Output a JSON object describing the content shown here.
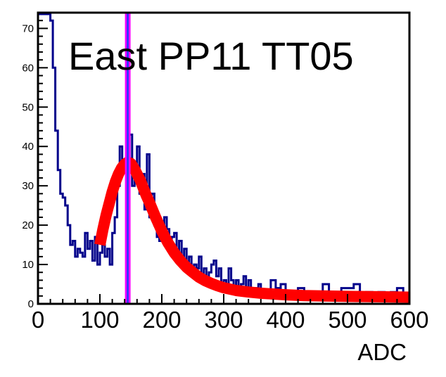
{
  "chart_data": {
    "type": "line",
    "title": "East PP11 TT05",
    "xlabel": "ADC",
    "ylabel": "",
    "xlim": [
      0,
      600
    ],
    "ylim": [
      0,
      74
    ],
    "x_ticks": [
      0,
      100,
      200,
      300,
      400,
      500,
      600
    ],
    "y_ticks": [
      0,
      10,
      20,
      30,
      40,
      50,
      60,
      70
    ],
    "grid": false,
    "colors": {
      "histogram": "#00008b",
      "fit": "#ff0000",
      "marker_outer": "#ff00ff",
      "marker_inner": "#3333ff",
      "frame": "#000000"
    },
    "series": [
      {
        "kind": "histogram",
        "bin_width": 2,
        "x": [
          0,
          4,
          8,
          12,
          16,
          20,
          24,
          28,
          32,
          36,
          40,
          44,
          48,
          52,
          56,
          60,
          64,
          68,
          72,
          76,
          80,
          84,
          88,
          92,
          96,
          100,
          104,
          108,
          112,
          116,
          120,
          124,
          128,
          132,
          136,
          140,
          144,
          148,
          152,
          156,
          160,
          164,
          168,
          172,
          176,
          180,
          184,
          188,
          192,
          196,
          200,
          204,
          208,
          212,
          216,
          220,
          224,
          228,
          232,
          236,
          240,
          244,
          248,
          252,
          256,
          260,
          264,
          268,
          272,
          276,
          280,
          284,
          288,
          292,
          296,
          300,
          304,
          308,
          312,
          316,
          320,
          324,
          328,
          332,
          336,
          340,
          344,
          348,
          352,
          356,
          360,
          368,
          376,
          384,
          392,
          400,
          410,
          420,
          430,
          440,
          450,
          460,
          470,
          480,
          490,
          500,
          510,
          520,
          530,
          540,
          550,
          560,
          570,
          580,
          590,
          600
        ],
        "values": [
          74,
          74,
          74,
          74,
          74,
          72,
          60,
          44,
          34,
          28,
          27,
          25,
          20,
          15,
          16,
          12,
          14,
          13,
          12,
          18,
          14,
          16,
          11,
          17,
          10,
          13,
          15,
          12,
          14,
          10,
          18,
          22,
          30,
          40,
          34,
          36,
          37,
          43,
          30,
          34,
          40,
          28,
          33,
          24,
          38,
          22,
          28,
          20,
          17,
          16,
          18,
          22,
          19,
          14,
          17,
          18,
          13,
          16,
          11,
          14,
          10,
          12,
          9,
          10,
          9,
          12,
          7,
          9,
          6,
          8,
          10,
          11,
          7,
          9,
          4,
          6,
          5,
          9,
          6,
          4,
          6,
          3,
          5,
          7,
          4,
          6,
          3,
          2,
          4,
          5,
          3,
          3,
          6,
          4,
          5,
          2,
          2,
          4,
          3,
          3,
          3,
          5,
          2,
          2,
          4,
          4,
          5,
          2,
          3,
          2,
          3,
          2,
          3,
          4,
          2,
          2
        ]
      },
      {
        "kind": "fit",
        "x": [
          100,
          105,
          110,
          115,
          120,
          125,
          130,
          135,
          140,
          145,
          150,
          155,
          160,
          165,
          170,
          175,
          180,
          190,
          200,
          210,
          220,
          230,
          240,
          250,
          260,
          270,
          280,
          290,
          300,
          320,
          340,
          360,
          380,
          400,
          430,
          460,
          500,
          550,
          600
        ],
        "values": [
          15,
          19,
          22.5,
          25.5,
          28.5,
          31,
          33,
          34.5,
          35.5,
          36,
          35.7,
          34.5,
          33,
          31.5,
          29.5,
          27.5,
          25.8,
          22,
          18.5,
          15.5,
          13,
          11,
          9.3,
          8,
          6.8,
          5.9,
          5.2,
          4.6,
          4.1,
          3.4,
          3,
          2.7,
          2.5,
          2.3,
          2.1,
          2,
          1.9,
          1.8,
          1.7
        ]
      }
    ],
    "marker_x": 145
  }
}
